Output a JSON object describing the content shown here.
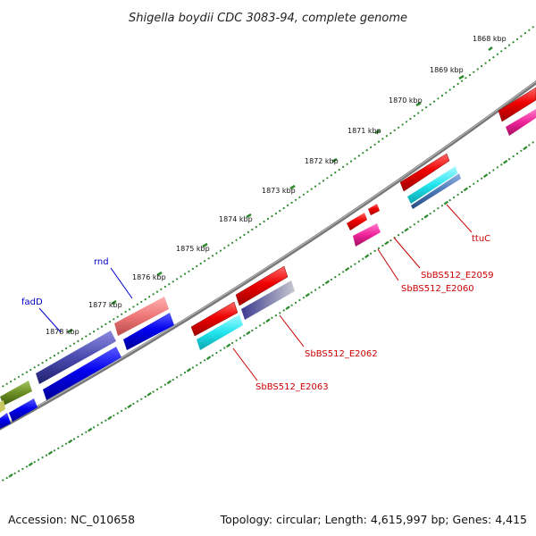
{
  "title": "Shigella boydii CDC 3083-94, complete genome",
  "accession": "Accession: NC_010658",
  "summary": "Topology: circular; Length: 4,615,997 bp; Genes: 4,415",
  "ticks": [
    {
      "label": "1868 kbp"
    },
    {
      "label": "1869 kbp"
    },
    {
      "label": "1870 kbp"
    },
    {
      "label": "1871 kbp"
    },
    {
      "label": "1872 kbp"
    },
    {
      "label": "1873 kbp"
    },
    {
      "label": "1874 kbp"
    },
    {
      "label": "1875 kbp"
    },
    {
      "label": "1876 kbp"
    },
    {
      "label": "1877 kbp"
    },
    {
      "label": "1878 kbp"
    }
  ],
  "gene_labels": [
    {
      "text": "fadD",
      "color": "#0000cc"
    },
    {
      "text": "rnd",
      "color": "#0000cc"
    },
    {
      "text": "ttuC",
      "color": "#cc0000"
    },
    {
      "text": "SbBS512_E2059",
      "color": "#cc0000"
    },
    {
      "text": "SbBS512_E2060",
      "color": "#cc0000"
    },
    {
      "text": "SbBS512_E2062",
      "color": "#cc0000"
    },
    {
      "text": "SbBS512_E2063",
      "color": "#cc0000"
    }
  ],
  "colors": {
    "backbone": "#777777",
    "tick": "#2e8b2e",
    "red_gene": "#ee0000",
    "blue_gene": "#0000ee",
    "navy_gene": "#4b4bb0",
    "pink_gene": "#ee7777",
    "magenta_gene": "#ee2299",
    "cyan_gene": "#22e5ee",
    "olive_gene": "#6b8e23",
    "steel_gene": "#4a78b5"
  }
}
